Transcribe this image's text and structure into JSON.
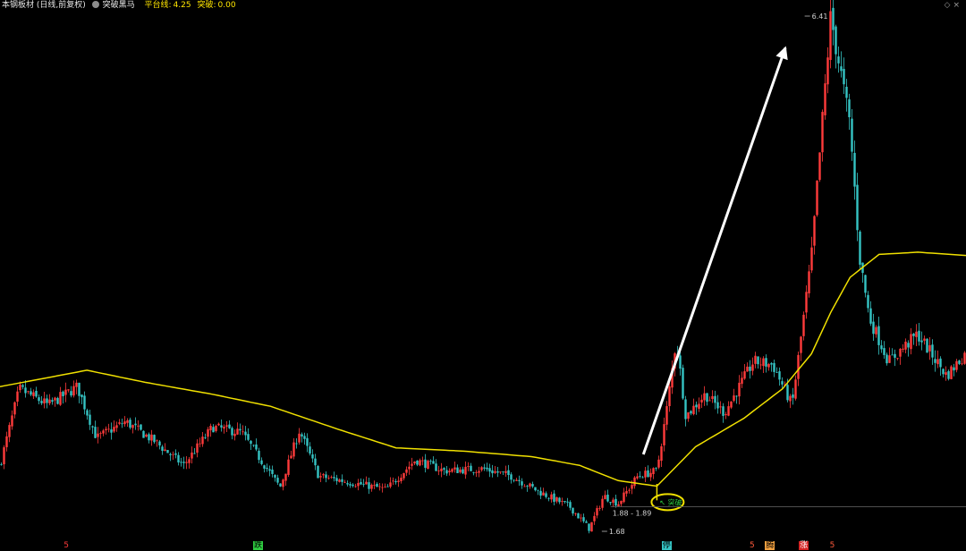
{
  "header": {
    "title": "本钢板材 (日线,前复权)",
    "indicator_name": "突破黑马",
    "platform_label": "平台线:",
    "platform_value": "4.25",
    "breakout_label": "突破:",
    "breakout_value": "0.00"
  },
  "colors": {
    "background": "#000000",
    "up": "#ff3b3b",
    "down": "#35c4c4",
    "platform_line": "#f0e000",
    "arrow": "#ffffff",
    "marker": "#f0e000"
  },
  "chart_data": {
    "type": "candlestick",
    "title": "本钢板材 (日线,前复权)",
    "price_range": [
      1.68,
      6.41
    ],
    "grid": false,
    "labels": {
      "high": "6.41",
      "low": "1.68",
      "range": "1.88 - 1.89",
      "breakout_tag": "突破"
    },
    "platform_line": {
      "name": "平台线",
      "x": [
        0,
        0.03,
        0.09,
        0.15,
        0.22,
        0.28,
        0.35,
        0.41,
        0.48,
        0.55,
        0.6,
        0.64,
        0.68,
        0.72,
        0.77,
        0.81,
        0.84,
        0.86,
        0.88,
        0.91,
        0.95,
        1.0
      ],
      "values": [
        3.02,
        3.07,
        3.17,
        3.06,
        2.95,
        2.84,
        2.63,
        2.46,
        2.43,
        2.38,
        2.3,
        2.16,
        2.11,
        2.47,
        2.73,
        3.0,
        3.32,
        3.7,
        4.02,
        4.23,
        4.25,
        4.22
      ]
    },
    "price_path": {
      "x": [
        0,
        0.02,
        0.05,
        0.08,
        0.1,
        0.13,
        0.16,
        0.19,
        0.22,
        0.25,
        0.27,
        0.29,
        0.31,
        0.33,
        0.36,
        0.4,
        0.43,
        0.46,
        0.5,
        0.53,
        0.56,
        0.59,
        0.61,
        0.625,
        0.64,
        0.66,
        0.68,
        0.69,
        0.7,
        0.71,
        0.73,
        0.75,
        0.78,
        0.8,
        0.82,
        0.84,
        0.86,
        0.88,
        0.89,
        0.9,
        0.92,
        0.95,
        0.98,
        1.0
      ],
      "values": [
        2.3,
        3.0,
        2.85,
        3.02,
        2.55,
        2.7,
        2.52,
        2.3,
        2.65,
        2.6,
        2.35,
        2.1,
        2.62,
        2.2,
        2.15,
        2.08,
        2.35,
        2.25,
        2.27,
        2.2,
        2.05,
        1.92,
        1.72,
        2.02,
        1.95,
        2.2,
        2.25,
        2.8,
        3.45,
        2.75,
        2.95,
        2.78,
        3.25,
        3.22,
        2.85,
        4.2,
        6.41,
        5.4,
        4.2,
        3.65,
        3.25,
        3.5,
        3.12,
        3.33
      ]
    },
    "signals": [
      {
        "label": "5",
        "x": 0.065,
        "color": "#ff3b3b",
        "bg": "transparent"
      },
      {
        "label": "跌",
        "x": 0.262,
        "color": "#000000",
        "bg": "#2ecc40"
      },
      {
        "label": "停",
        "x": 0.685,
        "color": "#000000",
        "bg": "#35c4c4"
      },
      {
        "label": "5",
        "x": 0.775,
        "color": "#ff5a3b",
        "bg": "transparent"
      },
      {
        "label": "腾",
        "x": 0.792,
        "color": "#000000",
        "bg": "#f0a040"
      },
      {
        "label": "涨",
        "x": 0.827,
        "color": "#ffffff",
        "bg": "#d22020"
      },
      {
        "label": "5",
        "x": 0.858,
        "color": "#ff5a3b",
        "bg": "transparent"
      }
    ]
  }
}
